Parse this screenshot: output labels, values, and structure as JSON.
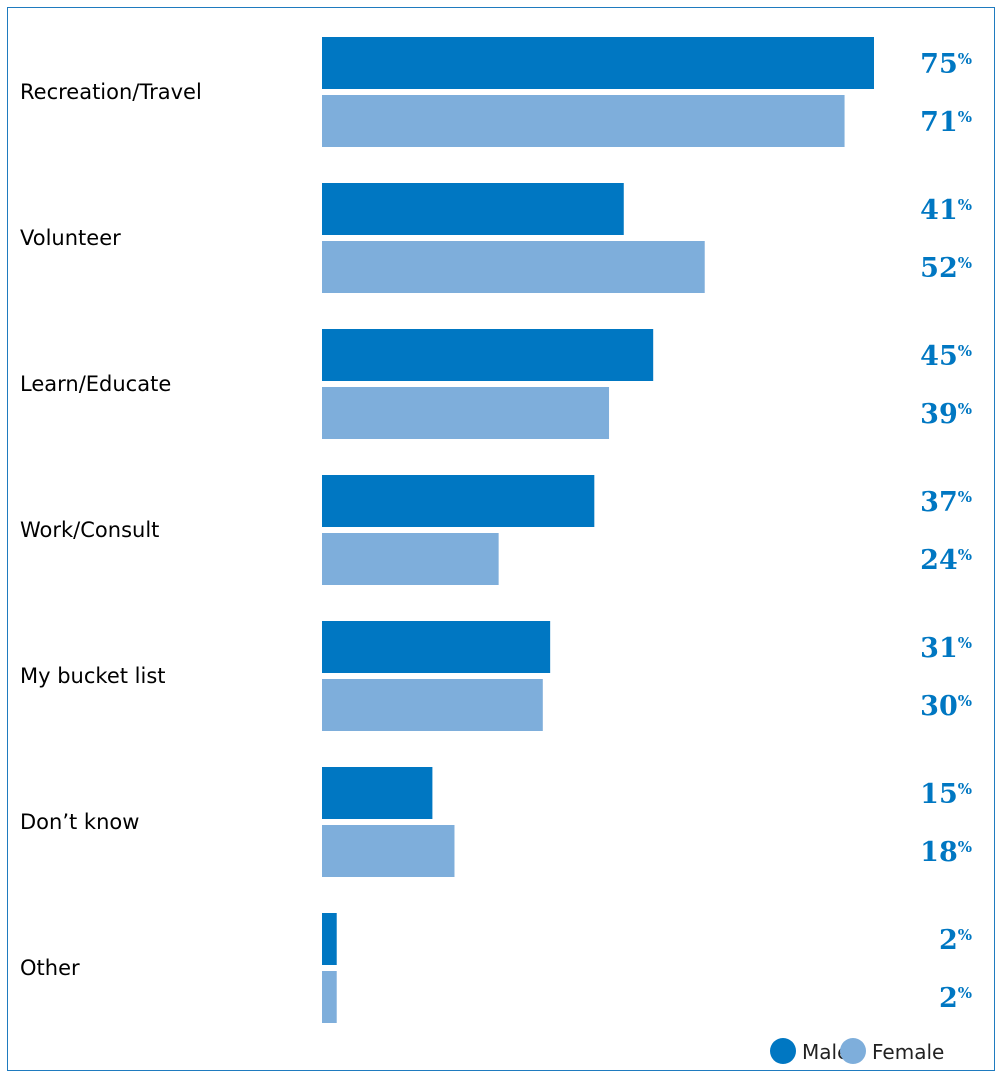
{
  "chart_data": {
    "type": "bar",
    "orientation": "horizontal",
    "categories": [
      "Recreation/Travel",
      "Volunteer",
      "Learn/Educate",
      "Work/Consult",
      "My bucket list",
      "Don’t know",
      "Other"
    ],
    "series": [
      {
        "name": "Male",
        "values": [
          75,
          41,
          45,
          37,
          31,
          15,
          2
        ],
        "color": "#0077c2"
      },
      {
        "name": "Female",
        "values": [
          71,
          52,
          39,
          24,
          30,
          18,
          2
        ],
        "color": "#7eaedb"
      }
    ],
    "value_suffix": "%",
    "legend_position": "bottom-right",
    "grid": false
  }
}
